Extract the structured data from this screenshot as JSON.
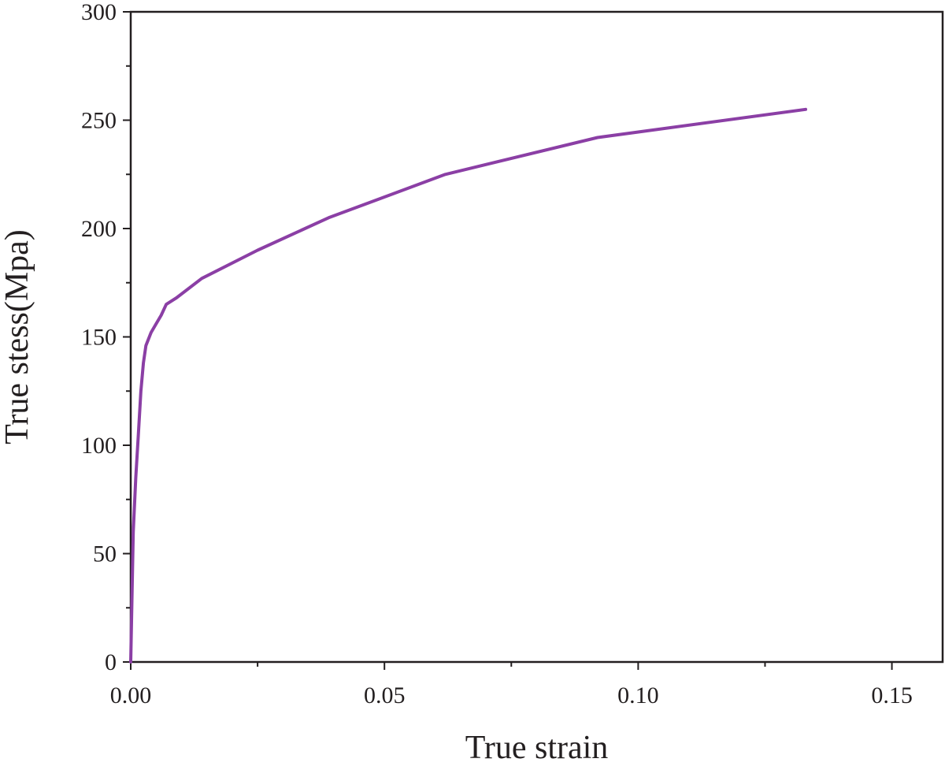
{
  "chart_data": {
    "type": "line",
    "title": "",
    "xlabel": "True strain",
    "ylabel": "True stess(Mpa)",
    "xlim": [
      0,
      0.16
    ],
    "ylim": [
      0,
      300
    ],
    "x_ticks": [
      0.0,
      0.05,
      0.1,
      0.15
    ],
    "x_tick_labels": [
      "0.00",
      "0.05",
      "0.10",
      "0.15"
    ],
    "x_minor_ticks": [
      0.025,
      0.075,
      0.125
    ],
    "y_ticks": [
      0,
      50,
      100,
      150,
      200,
      250,
      300
    ],
    "y_tick_labels": [
      "0",
      "50",
      "100",
      "150",
      "200",
      "250",
      "300"
    ],
    "y_minor_ticks": [
      25,
      75,
      125,
      175,
      225,
      275
    ],
    "grid": false,
    "legend": "none",
    "series": [
      {
        "color": "#8b3fa5",
        "x": [
          0.0,
          0.0005,
          0.001,
          0.0015,
          0.002,
          0.0025,
          0.003,
          0.004,
          0.005,
          0.006,
          0.007,
          0.009,
          0.014,
          0.025,
          0.039,
          0.062,
          0.092,
          0.133
        ],
        "y": [
          0,
          60,
          85,
          105,
          125,
          138,
          146,
          152,
          156,
          160,
          165,
          168,
          177,
          190,
          205,
          225,
          242,
          255
        ]
      }
    ]
  }
}
